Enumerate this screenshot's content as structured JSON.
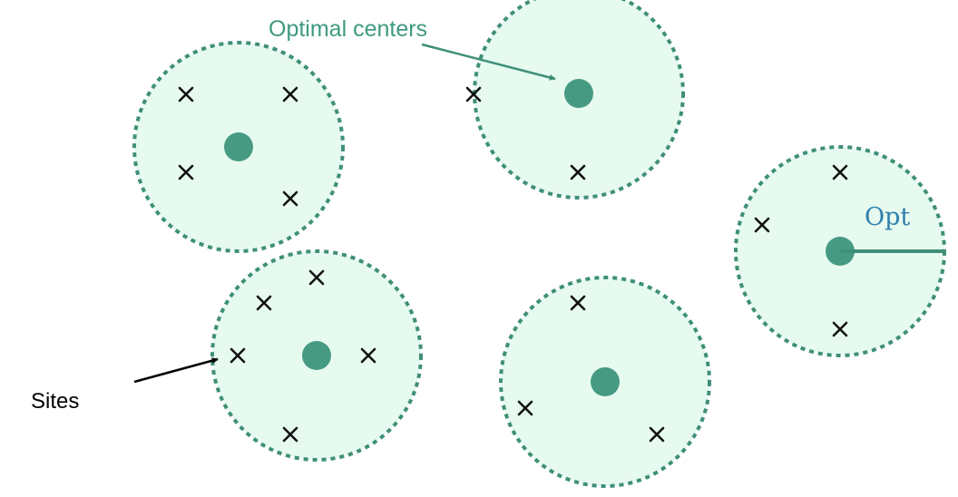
{
  "labels": {
    "optimal_centers": "Optimal centers",
    "sites": "Sites",
    "radius": "Opt"
  },
  "colors": {
    "disk_fill": "#e6faef",
    "disk_stroke": "#3f8f78",
    "center": "#469a82",
    "centers_label": "#3f9a80",
    "opt_label": "#2f7fae",
    "radius_line": "#3f8f78",
    "site_mark": "#111111",
    "sites_arrow": "#000000"
  },
  "icons": {
    "site": "x-mark-icon",
    "center": "filled-circle-icon",
    "pointer": "arrow-icon"
  }
}
